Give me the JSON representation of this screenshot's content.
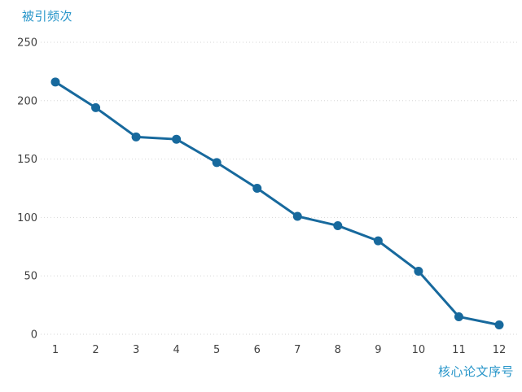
{
  "chart_data": {
    "type": "line",
    "title": "",
    "ylabel": "被引频次",
    "xlabel": "核心论文序号",
    "categories": [
      "1",
      "2",
      "3",
      "4",
      "5",
      "6",
      "7",
      "8",
      "9",
      "10",
      "11",
      "12"
    ],
    "values": [
      216,
      194,
      169,
      167,
      147,
      125,
      101,
      93,
      80,
      54,
      15,
      8
    ],
    "yticks": [
      0,
      50,
      100,
      150,
      200,
      250
    ],
    "ylim": [
      0,
      250
    ],
    "grid": "horizontal-dotted",
    "legend": "none",
    "marker": "circle"
  },
  "colors": {
    "line": "#17699d",
    "marker": "#17699d",
    "axis_title": "#2795c9",
    "tick_text": "#404040",
    "gridline": "#d6d6d6",
    "background": "#ffffff"
  }
}
